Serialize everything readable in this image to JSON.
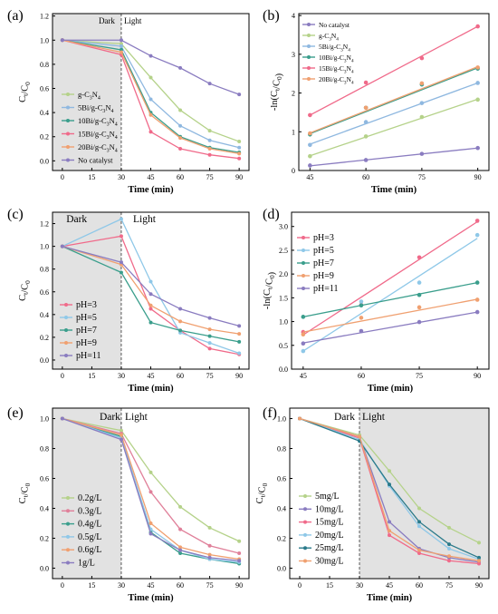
{
  "figure": {
    "panels": [
      "a",
      "b",
      "c",
      "d",
      "e",
      "f"
    ]
  },
  "chart_data": [
    {
      "id": "a",
      "panel_label": "(a)",
      "type": "line",
      "xlabel": "Time (min)",
      "ylabel": "Ct/C0",
      "x_ticks": [
        "0",
        "15",
        "30",
        "45",
        "60",
        "75",
        "90"
      ],
      "y_ticks": [
        "0.0",
        "0.2",
        "0.4",
        "0.6",
        "0.8",
        "1.0",
        "1.2"
      ],
      "xlim": [
        -5,
        95
      ],
      "ylim": [
        -0.08,
        1.22
      ],
      "dark_region": [
        -5,
        30
      ],
      "dark_label": "Dark",
      "light_label": "Light",
      "legend_position": "bottom-left",
      "x": [
        0,
        30,
        45,
        60,
        75,
        90
      ],
      "series": [
        {
          "name": "g-C3N4",
          "color": "#b5d28a",
          "values": [
            1.0,
            0.97,
            0.69,
            0.42,
            0.25,
            0.16
          ]
        },
        {
          "name": "5Bi/g-C3N4",
          "color": "#8fb8e0",
          "values": [
            1.0,
            0.95,
            0.51,
            0.29,
            0.17,
            0.11
          ]
        },
        {
          "name": "10Bi/g-C3N4",
          "color": "#3a9e8c",
          "values": [
            1.0,
            0.92,
            0.4,
            0.2,
            0.11,
            0.07
          ]
        },
        {
          "name": "15Bi/g-C3N4",
          "color": "#f06a8a",
          "values": [
            1.0,
            0.88,
            0.24,
            0.1,
            0.05,
            0.02
          ]
        },
        {
          "name": "20Bi/g-C3N4",
          "color": "#f0a070",
          "values": [
            1.0,
            0.9,
            0.38,
            0.19,
            0.1,
            0.06
          ]
        },
        {
          "name": "No catalyst",
          "color": "#8a7cc0",
          "values": [
            1.0,
            1.0,
            0.87,
            0.77,
            0.64,
            0.55
          ]
        }
      ]
    },
    {
      "id": "b",
      "panel_label": "(b)",
      "type": "scatter",
      "xlabel": "Time (min)",
      "ylabel": "-ln(Ct/C0)",
      "x_ticks": [
        "45",
        "60",
        "75",
        "90"
      ],
      "y_ticks": [
        "0",
        "1",
        "2",
        "3",
        "4"
      ],
      "xlim": [
        42,
        93
      ],
      "ylim": [
        0,
        4.05
      ],
      "legend_position": "top-left",
      "x": [
        45,
        60,
        75,
        90
      ],
      "series": [
        {
          "name": "No catalyst",
          "color": "#8a7cc0",
          "values": [
            0.13,
            0.27,
            0.43,
            0.58
          ],
          "fit": [
            0.12,
            0.58
          ]
        },
        {
          "name": "g-C3N4",
          "color": "#b5d28a",
          "values": [
            0.37,
            0.88,
            1.38,
            1.83
          ],
          "fit": [
            0.38,
            1.84
          ]
        },
        {
          "name": "5Bi/g-C3N4",
          "color": "#8fb8e0",
          "values": [
            0.66,
            1.25,
            1.74,
            2.26
          ],
          "fit": [
            0.68,
            2.26
          ]
        },
        {
          "name": "10Bi/g-C3N4",
          "color": "#3a9e8c",
          "values": [
            0.93,
            1.62,
            2.22,
            2.63
          ],
          "fit": [
            0.95,
            2.65
          ]
        },
        {
          "name": "15Bi/g-C3N4",
          "color": "#f06a8a",
          "values": [
            1.43,
            2.27,
            2.9,
            3.72
          ],
          "fit": [
            1.43,
            3.72
          ]
        },
        {
          "name": "20Bi/g-C3N4",
          "color": "#f0a070",
          "values": [
            0.96,
            1.62,
            2.25,
            2.66
          ],
          "fit": [
            0.97,
            2.68
          ]
        }
      ]
    },
    {
      "id": "c",
      "panel_label": "(c)",
      "type": "line",
      "xlabel": "Time (min)",
      "ylabel": "Ct/C0",
      "x_ticks": [
        "0",
        "15",
        "30",
        "45",
        "60",
        "75",
        "90"
      ],
      "y_ticks": [
        "0.0",
        "0.2",
        "0.4",
        "0.6",
        "0.8",
        "1.0",
        "1.2"
      ],
      "xlim": [
        -5,
        95
      ],
      "ylim": [
        -0.08,
        1.3
      ],
      "dark_region": [
        -5,
        30
      ],
      "dark_label": "Dark",
      "light_label": "Light",
      "legend_position": "bottom-left",
      "x": [
        0,
        30,
        45,
        60,
        75,
        90
      ],
      "series": [
        {
          "name": "pH=3",
          "color": "#f06a8a",
          "values": [
            1.0,
            1.09,
            0.45,
            0.26,
            0.1,
            0.05
          ]
        },
        {
          "name": "pH=5",
          "color": "#8fc8e8",
          "values": [
            1.0,
            1.24,
            0.69,
            0.24,
            0.15,
            0.06
          ]
        },
        {
          "name": "pH=7",
          "color": "#3a9e8c",
          "values": [
            1.0,
            0.77,
            0.33,
            0.26,
            0.21,
            0.16
          ]
        },
        {
          "name": "pH=9",
          "color": "#f0a070",
          "values": [
            1.0,
            0.84,
            0.48,
            0.34,
            0.27,
            0.23
          ]
        },
        {
          "name": "pH=11",
          "color": "#8a7cc0",
          "values": [
            1.0,
            0.86,
            0.58,
            0.45,
            0.37,
            0.3
          ]
        }
      ]
    },
    {
      "id": "d",
      "panel_label": "(d)",
      "type": "scatter",
      "xlabel": "Time (min)",
      "ylabel": "-ln(Ct/C0)",
      "x_ticks": [
        "45",
        "60",
        "75",
        "90"
      ],
      "y_ticks": [
        "0.0",
        "0.5",
        "1.0",
        "1.5",
        "2.0",
        "2.5",
        "3.0"
      ],
      "xlim": [
        42,
        93
      ],
      "ylim": [
        0,
        3.3
      ],
      "legend_position": "top-left",
      "x": [
        45,
        60,
        75,
        90
      ],
      "series": [
        {
          "name": "pH=3",
          "color": "#f06a8a",
          "values": [
            0.78,
            1.35,
            2.35,
            3.12
          ],
          "fit": [
            0.72,
            3.1
          ]
        },
        {
          "name": "pH=5",
          "color": "#8fc8e8",
          "values": [
            0.38,
            1.42,
            1.82,
            2.82
          ],
          "fit": [
            0.38,
            2.75
          ]
        },
        {
          "name": "pH=7",
          "color": "#3a9e8c",
          "values": [
            1.1,
            1.34,
            1.56,
            1.82
          ],
          "fit": [
            1.1,
            1.82
          ]
        },
        {
          "name": "pH=9",
          "color": "#f0a070",
          "values": [
            0.73,
            1.08,
            1.3,
            1.46
          ],
          "fit": [
            0.78,
            1.47
          ]
        },
        {
          "name": "pH=11",
          "color": "#8a7cc0",
          "values": [
            0.54,
            0.8,
            0.99,
            1.2
          ],
          "fit": [
            0.55,
            1.2
          ]
        }
      ]
    },
    {
      "id": "e",
      "panel_label": "(e)",
      "type": "line",
      "xlabel": "Time (min)",
      "ylabel": "Ct/C0",
      "x_ticks": [
        "0",
        "15",
        "30",
        "45",
        "60",
        "75",
        "90"
      ],
      "y_ticks": [
        "0.0",
        "0.2",
        "0.4",
        "0.6",
        "0.8",
        "1.0"
      ],
      "xlim": [
        -5,
        95
      ],
      "ylim": [
        -0.07,
        1.07
      ],
      "dark_region": [
        -5,
        30
      ],
      "dark_label": "Dark",
      "light_label": "Light",
      "legend_position": "bottom-left",
      "x": [
        0,
        30,
        45,
        60,
        75,
        90
      ],
      "series": [
        {
          "name": "0.2g/L",
          "color": "#b5d28a",
          "values": [
            1.0,
            0.92,
            0.64,
            0.41,
            0.27,
            0.18
          ]
        },
        {
          "name": "0.3g/L",
          "color": "#e0809a",
          "values": [
            1.0,
            0.9,
            0.51,
            0.26,
            0.15,
            0.1
          ]
        },
        {
          "name": "0.4g/L",
          "color": "#3a9e8c",
          "values": [
            1.0,
            0.88,
            0.24,
            0.1,
            0.06,
            0.03
          ]
        },
        {
          "name": "0.5g/L",
          "color": "#8fc8e8",
          "values": [
            1.0,
            0.87,
            0.26,
            0.12,
            0.06,
            0.04
          ]
        },
        {
          "name": "0.6g/L",
          "color": "#f0a070",
          "values": [
            1.0,
            0.89,
            0.3,
            0.14,
            0.09,
            0.06
          ]
        },
        {
          "name": "1g/L",
          "color": "#8a7cc0",
          "values": [
            1.0,
            0.86,
            0.23,
            0.12,
            0.07,
            0.05
          ]
        }
      ]
    },
    {
      "id": "f",
      "panel_label": "(f)",
      "type": "line",
      "xlabel": "Time (min)",
      "ylabel": "Ct/C0",
      "x_ticks": [
        "0",
        "15",
        "30",
        "45",
        "60",
        "75",
        "90"
      ],
      "y_ticks": [
        "0.0",
        "0.2",
        "0.4",
        "0.6",
        "0.8",
        "1.0"
      ],
      "xlim": [
        -5,
        95
      ],
      "ylim": [
        -0.07,
        1.07
      ],
      "dark_region": [
        30,
        95
      ],
      "dark_label": "Dark",
      "light_label": "Light",
      "legend_position": "bottom-left",
      "x": [
        0,
        30,
        45,
        60,
        75,
        90
      ],
      "series": [
        {
          "name": "5mg/L",
          "color": "#b5d28a",
          "values": [
            1.0,
            0.89,
            0.65,
            0.4,
            0.27,
            0.17
          ]
        },
        {
          "name": "10mg/L",
          "color": "#8a7cc0",
          "values": [
            1.0,
            0.88,
            0.31,
            0.13,
            0.07,
            0.04
          ]
        },
        {
          "name": "15mg/L",
          "color": "#f06a8a",
          "values": [
            1.0,
            0.87,
            0.22,
            0.1,
            0.05,
            0.03
          ]
        },
        {
          "name": "20mg/L",
          "color": "#8fc8e8",
          "values": [
            1.0,
            0.86,
            0.55,
            0.28,
            0.13,
            0.06
          ]
        },
        {
          "name": "25mg/L",
          "color": "#2a7a8a",
          "values": [
            1.0,
            0.85,
            0.56,
            0.31,
            0.16,
            0.07
          ]
        },
        {
          "name": "30mg/L",
          "color": "#f0a070",
          "values": [
            1.0,
            0.88,
            0.25,
            0.12,
            0.08,
            0.05
          ]
        }
      ]
    }
  ]
}
